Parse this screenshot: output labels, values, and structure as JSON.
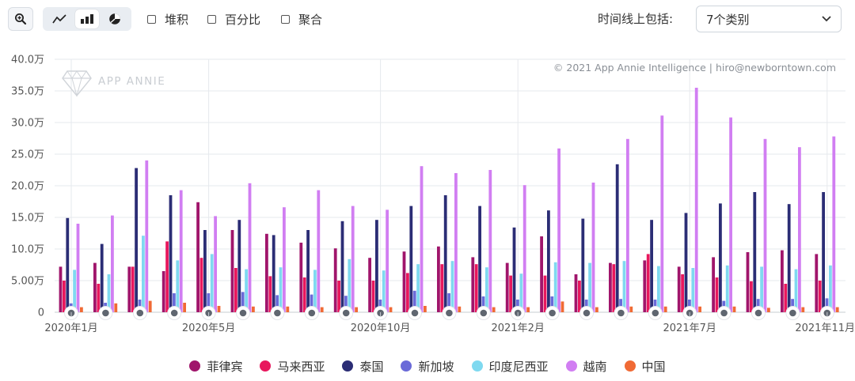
{
  "toolbar": {
    "stack_label": "堆积",
    "percent_label": "百分比",
    "aggregate_label": "聚合",
    "timeline_label": "时间线上包括:",
    "category_select": "7个类别"
  },
  "icons": {
    "zoom": "zoom-in-icon",
    "line": "line-chart-icon",
    "bar": "bar-chart-icon",
    "pie": "pie-chart-icon",
    "dropdown": "chevron-down-icon"
  },
  "chart_data": {
    "type": "bar",
    "watermark": "APP ANNIE",
    "copyright": "© 2021 App Annie Intelligence | hiro@newborntown.com",
    "yticks": [
      "0",
      "5.00万",
      "10.0万",
      "15.0万",
      "20.0万",
      "25.0万",
      "30.0万",
      "35.0万",
      "40.0万"
    ],
    "ylim": [
      0,
      400000
    ],
    "x_labels": [
      {
        "index": 0,
        "label": "2020年1月"
      },
      {
        "index": 4,
        "label": "2020年5月"
      },
      {
        "index": 9,
        "label": "2020年10月"
      },
      {
        "index": 13,
        "label": "2021年2月"
      },
      {
        "index": 18,
        "label": "2021年7月"
      },
      {
        "index": 22,
        "label": "2021年11月"
      }
    ],
    "categories": [
      "2020-01",
      "2020-02",
      "2020-03",
      "2020-04",
      "2020-05",
      "2020-06",
      "2020-07",
      "2020-08",
      "2020-09",
      "2020-10",
      "2020-11",
      "2020-12",
      "2021-01",
      "2021-02",
      "2021-03",
      "2021-04",
      "2021-05",
      "2021-06",
      "2021-07",
      "2021-08",
      "2021-09",
      "2021-10",
      "2021-11"
    ],
    "series": [
      {
        "name": "菲律宾",
        "color": "#a0156b",
        "values": [
          72000,
          78000,
          72000,
          65000,
          174000,
          130000,
          124000,
          110000,
          101000,
          86000,
          96000,
          104000,
          87000,
          78000,
          120000,
          60000,
          78000,
          82000,
          72000,
          87000,
          95000,
          98000,
          92000
        ]
      },
      {
        "name": "马来西亚",
        "color": "#e8175d",
        "values": [
          50000,
          45000,
          72000,
          112000,
          86000,
          70000,
          57000,
          55000,
          50000,
          50000,
          62000,
          76000,
          76000,
          58000,
          58000,
          50000,
          76000,
          92000,
          60000,
          55000,
          49000,
          45000,
          50000
        ]
      },
      {
        "name": "泰国",
        "color": "#2b2d75",
        "values": [
          149000,
          108000,
          228000,
          185000,
          130000,
          146000,
          122000,
          130000,
          144000,
          146000,
          168000,
          185000,
          168000,
          134000,
          161000,
          148000,
          234000,
          146000,
          157000,
          172000,
          190000,
          171000,
          190000
        ]
      },
      {
        "name": "新加坡",
        "color": "#6a6ad8",
        "values": [
          14000,
          15000,
          20000,
          30000,
          30000,
          32000,
          27000,
          28000,
          26000,
          20000,
          34000,
          30000,
          25000,
          20000,
          25000,
          20000,
          21000,
          20000,
          20000,
          18000,
          21000,
          21000,
          22000
        ]
      },
      {
        "name": "印度尼西亚",
        "color": "#7fd9f0",
        "values": [
          67000,
          60000,
          121000,
          82000,
          92000,
          68000,
          71000,
          67000,
          84000,
          66000,
          76000,
          81000,
          71000,
          61000,
          79000,
          78000,
          81000,
          73000,
          70000,
          74000,
          72000,
          68000,
          74000
        ]
      },
      {
        "name": "越南",
        "color": "#d17ef2",
        "values": [
          140000,
          153000,
          240000,
          193000,
          152000,
          204000,
          166000,
          193000,
          168000,
          162000,
          231000,
          220000,
          225000,
          201000,
          259000,
          205000,
          274000,
          311000,
          355000,
          308000,
          274000,
          261000,
          278000
        ]
      },
      {
        "name": "中国",
        "color": "#f06a35",
        "values": [
          8000,
          14000,
          18000,
          15000,
          10000,
          9000,
          9000,
          8000,
          8000,
          8000,
          10000,
          9000,
          8000,
          8000,
          17000,
          8000,
          9000,
          9000,
          9000,
          9000,
          7000,
          8000,
          8000
        ]
      }
    ]
  }
}
